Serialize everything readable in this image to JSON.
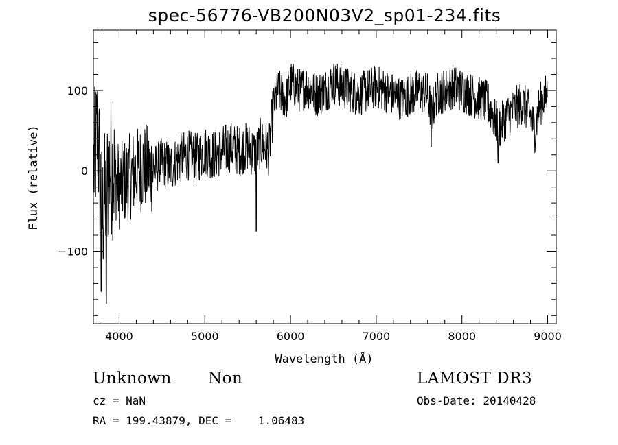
{
  "chart_data": {
    "type": "line",
    "title": "spec-56776-VB200N03V2_sp01-234.fits",
    "xlabel": "Wavelength (Å)",
    "ylabel": "Flux (relative)",
    "xlim": [
      3700,
      9100
    ],
    "ylim": [
      -190,
      175
    ],
    "x_ticks": [
      4000,
      5000,
      6000,
      7000,
      8000,
      9000
    ],
    "y_ticks": [
      -100,
      0,
      100
    ],
    "x": [
      3700,
      3750,
      3800,
      3900,
      4000,
      4100,
      4200,
      4300,
      4400,
      4500,
      4600,
      4700,
      4800,
      4900,
      5000,
      5100,
      5200,
      5300,
      5400,
      5500,
      5550,
      5600,
      5650,
      5700,
      5750,
      5800,
      5850,
      5900,
      5950,
      6000,
      6100,
      6200,
      6300,
      6400,
      6500,
      6600,
      6700,
      6800,
      6900,
      7000,
      7100,
      7200,
      7300,
      7400,
      7500,
      7600,
      7650,
      7700,
      7800,
      7900,
      8000,
      8100,
      8200,
      8300,
      8400,
      8450,
      8500,
      8600,
      8700,
      8800,
      8850,
      8900,
      8950,
      9000
    ],
    "values": [
      0,
      50,
      -60,
      10,
      -20,
      -10,
      0,
      5,
      0,
      10,
      5,
      15,
      20,
      15,
      25,
      20,
      25,
      30,
      25,
      30,
      25,
      20,
      35,
      30,
      25,
      80,
      100,
      95,
      90,
      110,
      100,
      105,
      95,
      100,
      110,
      105,
      100,
      95,
      100,
      105,
      100,
      95,
      90,
      95,
      100,
      95,
      70,
      95,
      100,
      105,
      100,
      95,
      90,
      85,
      60,
      55,
      65,
      75,
      85,
      70,
      50,
      80,
      90,
      95
    ],
    "dips": [
      {
        "x": 3790,
        "y": -150
      },
      {
        "x": 3850,
        "y": -165
      },
      {
        "x": 5600,
        "y": -75
      },
      {
        "x": 7640,
        "y": 30
      },
      {
        "x": 8420,
        "y": 10
      }
    ],
    "grid": false,
    "line_color": "#000000"
  },
  "info": {
    "classification": "Unknown",
    "subclass": "Non",
    "survey": "LAMOST DR3",
    "cz": "cz = NaN",
    "obs_date": "Obs-Date: 20140428",
    "coords": "RA = 199.43879, DEC =    1.06483"
  }
}
